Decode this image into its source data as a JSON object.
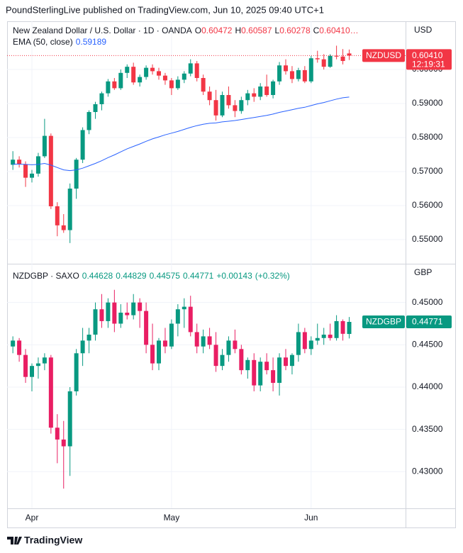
{
  "header": "PoundSterlingLive published on TradingView.com, Jun 10, 2025 09:40 UTC+1",
  "footer": "TradingView",
  "chart_data": [
    {
      "type": "candlestick",
      "title": "New Zealand Dollar / U.S. Dollar · 1D · OANDA",
      "currency": "USD",
      "up_color": "#089981",
      "down_color": "#f23645",
      "legend_color": "#f23645",
      "grid": true,
      "price_line": true,
      "ylim": [
        0.54292,
        0.61417
      ],
      "yticks": [
        {
          "value": 0.55,
          "label": "0.55000"
        },
        {
          "value": 0.56,
          "label": "0.56000"
        },
        {
          "value": 0.57,
          "label": "0.57000"
        },
        {
          "value": 0.58,
          "label": "0.58000"
        },
        {
          "value": 0.59,
          "label": "0.59000"
        },
        {
          "value": 0.6,
          "label": "0.60000"
        }
      ],
      "ohlc_legend": [
        {
          "prefix": "O",
          "value": 0.60472,
          "label": "0.60472"
        },
        {
          "prefix": "H",
          "value": 0.60587,
          "label": "0.60587"
        },
        {
          "prefix": "L",
          "value": 0.60278,
          "label": "0.60278"
        },
        {
          "prefix": "C",
          "value": 0.6041,
          "label": "0.60410…"
        }
      ],
      "open": [
        0.572,
        0.5735,
        0.5722,
        0.5682,
        0.5694,
        0.5745,
        0.5805,
        0.5598,
        0.5542,
        0.5528,
        0.565,
        0.5735,
        0.5822,
        0.5875,
        0.5898,
        0.593,
        0.5965,
        0.5945,
        0.599,
        0.6008,
        0.5962,
        0.5978,
        0.6005,
        0.5995,
        0.5982,
        0.5968,
        0.5945,
        0.597,
        0.5988,
        0.6018,
        0.5975,
        0.5935,
        0.591,
        0.5865,
        0.5925,
        0.5895,
        0.5878,
        0.591,
        0.593,
        0.592,
        0.595,
        0.5925,
        0.5965,
        0.6012,
        0.5995,
        0.5972,
        0.5998,
        0.5965,
        0.6033,
        0.603,
        0.6008,
        0.604,
        0.6038,
        0.60472
      ],
      "high": [
        0.576,
        0.5745,
        0.573,
        0.5705,
        0.5755,
        0.5855,
        0.5812,
        0.561,
        0.5575,
        0.5665,
        0.574,
        0.583,
        0.588,
        0.5905,
        0.5935,
        0.5972,
        0.5975,
        0.6,
        0.6015,
        0.602,
        0.5985,
        0.6012,
        0.6015,
        0.6005,
        0.599,
        0.5975,
        0.598,
        0.5995,
        0.603,
        0.6025,
        0.5985,
        0.595,
        0.594,
        0.5935,
        0.595,
        0.591,
        0.592,
        0.594,
        0.5945,
        0.596,
        0.5985,
        0.597,
        0.6022,
        0.603,
        0.601,
        0.6005,
        0.601,
        0.604,
        0.6055,
        0.6045,
        0.6045,
        0.607,
        0.606,
        0.60587
      ],
      "low": [
        0.5705,
        0.5712,
        0.5655,
        0.5668,
        0.5685,
        0.574,
        0.559,
        0.551,
        0.552,
        0.549,
        0.562,
        0.5725,
        0.581,
        0.5855,
        0.588,
        0.592,
        0.594,
        0.594,
        0.5975,
        0.5955,
        0.595,
        0.597,
        0.5985,
        0.597,
        0.5955,
        0.5925,
        0.594,
        0.596,
        0.598,
        0.5965,
        0.5925,
        0.5895,
        0.585,
        0.586,
        0.5885,
        0.586,
        0.587,
        0.5895,
        0.5905,
        0.591,
        0.592,
        0.5915,
        0.5955,
        0.5985,
        0.596,
        0.5965,
        0.596,
        0.596,
        0.602,
        0.6,
        0.6005,
        0.603,
        0.6015,
        0.60278
      ],
      "close": [
        0.5735,
        0.5722,
        0.5682,
        0.5694,
        0.5745,
        0.5805,
        0.5598,
        0.5542,
        0.5528,
        0.565,
        0.5735,
        0.5822,
        0.5875,
        0.5898,
        0.593,
        0.5965,
        0.5945,
        0.599,
        0.6008,
        0.5962,
        0.5978,
        0.6005,
        0.5995,
        0.5982,
        0.5968,
        0.5945,
        0.597,
        0.5988,
        0.6018,
        0.5975,
        0.5935,
        0.591,
        0.5865,
        0.5925,
        0.5895,
        0.5878,
        0.591,
        0.593,
        0.592,
        0.595,
        0.5925,
        0.5965,
        0.6012,
        0.5995,
        0.5972,
        0.5998,
        0.5965,
        0.6033,
        0.603,
        0.6008,
        0.604,
        0.6038,
        0.6025,
        0.6041
      ],
      "overlay": {
        "name": "EMA (50, close)",
        "color": "#2962ff",
        "values": [
          0.5722,
          0.5722,
          0.5721,
          0.572,
          0.5721,
          0.5724,
          0.5719,
          0.5712,
          0.5705,
          0.5703,
          0.5705,
          0.571,
          0.5717,
          0.5724,
          0.5732,
          0.5741,
          0.5749,
          0.5758,
          0.5767,
          0.5774,
          0.5781,
          0.5789,
          0.5796,
          0.5802,
          0.5808,
          0.5813,
          0.5818,
          0.5824,
          0.583,
          0.5835,
          0.5839,
          0.5842,
          0.5843,
          0.5846,
          0.5848,
          0.585,
          0.5853,
          0.5856,
          0.5859,
          0.5862,
          0.5865,
          0.5869,
          0.5874,
          0.5878,
          0.5882,
          0.5886,
          0.5889,
          0.5894,
          0.5899,
          0.5903,
          0.5908,
          0.5913,
          0.5917,
          0.59189
        ]
      },
      "price_tag": {
        "symbol": "NZDUSD",
        "value": 0.6041,
        "label": "0.60410",
        "countdown": "12:19:31",
        "color": "#f23645"
      }
    },
    {
      "type": "candlestick",
      "title": "NZDGBP · SAXO",
      "currency": "GBP",
      "up_color": "#089981",
      "down_color": "#e91e63",
      "legend_color": "#089981",
      "grid": true,
      "price_line": false,
      "ylim": [
        0.425667,
        0.454583
      ],
      "yticks": [
        {
          "value": 0.43,
          "label": "0.43000"
        },
        {
          "value": 0.435,
          "label": "0.43500"
        },
        {
          "value": 0.44,
          "label": "0.44000"
        },
        {
          "value": 0.445,
          "label": "0.44500"
        },
        {
          "value": 0.45,
          "label": "0.45000"
        }
      ],
      "ohlc_legend": [
        {
          "value": 0.44628,
          "label": "0.44628"
        },
        {
          "value": 0.44829,
          "label": "0.44829"
        },
        {
          "value": 0.44575,
          "label": "0.44575"
        },
        {
          "value": 0.44771,
          "label": "0.44771"
        },
        {
          "value": 0.00143,
          "label": "+0.00143"
        },
        {
          "value": 0.32,
          "label": "(+0.32%)"
        }
      ],
      "categories": [
        null,
        null,
        null,
        "Apr",
        null,
        null,
        null,
        null,
        null,
        null,
        null,
        null,
        null,
        null,
        null,
        null,
        null,
        null,
        null,
        null,
        null,
        null,
        null,
        null,
        null,
        "May",
        null,
        null,
        null,
        null,
        null,
        null,
        null,
        null,
        null,
        null,
        null,
        null,
        null,
        null,
        null,
        null,
        null,
        null,
        null,
        null,
        null,
        "Jun",
        null,
        null,
        null,
        null,
        null,
        null
      ],
      "open": [
        0.4448,
        0.4455,
        0.4438,
        0.4412,
        0.4425,
        0.4428,
        0.4435,
        0.4352,
        0.4338,
        0.433,
        0.4395,
        0.444,
        0.4455,
        0.4462,
        0.4492,
        0.4478,
        0.45,
        0.4475,
        0.4488,
        0.4485,
        0.45,
        0.449,
        0.445,
        0.4428,
        0.4455,
        0.4448,
        0.4475,
        0.4492,
        0.4495,
        0.4465,
        0.4448,
        0.446,
        0.445,
        0.4425,
        0.4438,
        0.4455,
        0.4445,
        0.442,
        0.4432,
        0.4402,
        0.443,
        0.442,
        0.4405,
        0.4435,
        0.4425,
        0.4438,
        0.4465,
        0.4445,
        0.4455,
        0.4458,
        0.4462,
        0.4458,
        0.4478,
        0.44628
      ],
      "high": [
        0.446,
        0.4458,
        0.4445,
        0.4428,
        0.4435,
        0.444,
        0.4438,
        0.4368,
        0.436,
        0.44,
        0.4445,
        0.447,
        0.447,
        0.45,
        0.451,
        0.4505,
        0.4515,
        0.4498,
        0.45,
        0.451,
        0.4505,
        0.45,
        0.4475,
        0.4458,
        0.447,
        0.448,
        0.4498,
        0.4505,
        0.4508,
        0.4475,
        0.4468,
        0.447,
        0.4465,
        0.4445,
        0.446,
        0.4468,
        0.445,
        0.4435,
        0.444,
        0.4435,
        0.444,
        0.4435,
        0.444,
        0.4445,
        0.444,
        0.4475,
        0.447,
        0.446,
        0.4475,
        0.447,
        0.4475,
        0.4485,
        0.448,
        0.44829
      ],
      "low": [
        0.444,
        0.443,
        0.4405,
        0.4395,
        0.441,
        0.442,
        0.4345,
        0.431,
        0.428,
        0.4295,
        0.439,
        0.4425,
        0.444,
        0.4455,
        0.447,
        0.447,
        0.4465,
        0.447,
        0.448,
        0.448,
        0.447,
        0.444,
        0.442,
        0.442,
        0.444,
        0.4445,
        0.446,
        0.447,
        0.446,
        0.444,
        0.444,
        0.4445,
        0.4418,
        0.442,
        0.443,
        0.444,
        0.4415,
        0.441,
        0.4395,
        0.4395,
        0.4415,
        0.4395,
        0.439,
        0.442,
        0.4415,
        0.443,
        0.444,
        0.4438,
        0.445,
        0.445,
        0.4455,
        0.4455,
        0.4455,
        0.44575
      ],
      "close": [
        0.4455,
        0.4438,
        0.4412,
        0.4425,
        0.4428,
        0.4435,
        0.4352,
        0.4338,
        0.433,
        0.4395,
        0.444,
        0.4455,
        0.4462,
        0.4492,
        0.4478,
        0.45,
        0.4475,
        0.4488,
        0.4485,
        0.45,
        0.449,
        0.445,
        0.4428,
        0.4455,
        0.4448,
        0.4475,
        0.4492,
        0.4495,
        0.4465,
        0.4448,
        0.446,
        0.445,
        0.4425,
        0.4438,
        0.4455,
        0.4445,
        0.442,
        0.4432,
        0.4402,
        0.443,
        0.442,
        0.4405,
        0.4435,
        0.4425,
        0.4438,
        0.4465,
        0.4445,
        0.4455,
        0.4458,
        0.4462,
        0.4458,
        0.4478,
        0.4463,
        0.44771
      ],
      "price_tag": {
        "symbol": "NZDGBP",
        "value": 0.44771,
        "label": "0.44771",
        "color": "#089981"
      }
    }
  ]
}
